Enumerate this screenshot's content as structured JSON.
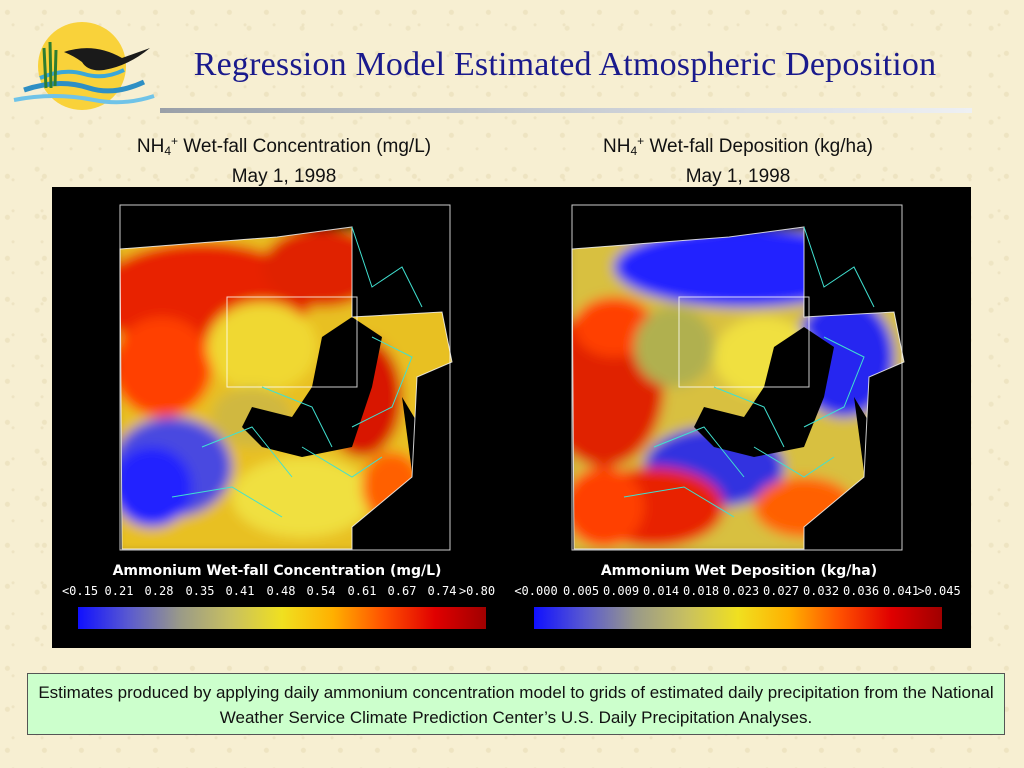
{
  "title": "Regression Model Estimated Atmospheric Deposition",
  "logo": {
    "icon": "heron-sun-logo-icon"
  },
  "left_caption": {
    "prefix": "NH",
    "sub": "4",
    "sup": "+",
    "text": " Wet-fall Concentration (mg/L)",
    "date": "May 1, 1998"
  },
  "right_caption": {
    "prefix": "NH",
    "sub": "4",
    "sup": "+",
    "text": " Wet-fall Deposition (kg/ha)",
    "date": "May 1, 1998"
  },
  "left_legend": {
    "title": "Ammonium Wet-fall Concentration (mg/L)",
    "ticks": [
      "<0.15",
      "0.21",
      "0.28",
      "0.35",
      "0.41",
      "0.48",
      "0.54",
      "0.61",
      "0.67",
      "0.74",
      ">0.80"
    ]
  },
  "right_legend": {
    "title": "Ammonium Wet Deposition (kg/ha)",
    "ticks": [
      "<0.000",
      "0.005",
      "0.009",
      "0.014",
      "0.018",
      "0.023",
      "0.027",
      "0.032",
      "0.036",
      "0.041",
      ">0.045"
    ]
  },
  "colors": {
    "ramp": [
      "#1010ff",
      "#5a5ad0",
      "#9a9a88",
      "#c8c060",
      "#f0e020",
      "#ffb000",
      "#ff5000",
      "#e00000",
      "#a00000"
    ],
    "title": "#1a1a8c",
    "note_bg": "#ccffcc"
  },
  "footnote": "Estimates produced by applying daily ammonium concentration model to grids of estimated daily precipitation from the National Weather Service Climate Prediction Center’s U.S. Daily Precipitation Analyses."
}
